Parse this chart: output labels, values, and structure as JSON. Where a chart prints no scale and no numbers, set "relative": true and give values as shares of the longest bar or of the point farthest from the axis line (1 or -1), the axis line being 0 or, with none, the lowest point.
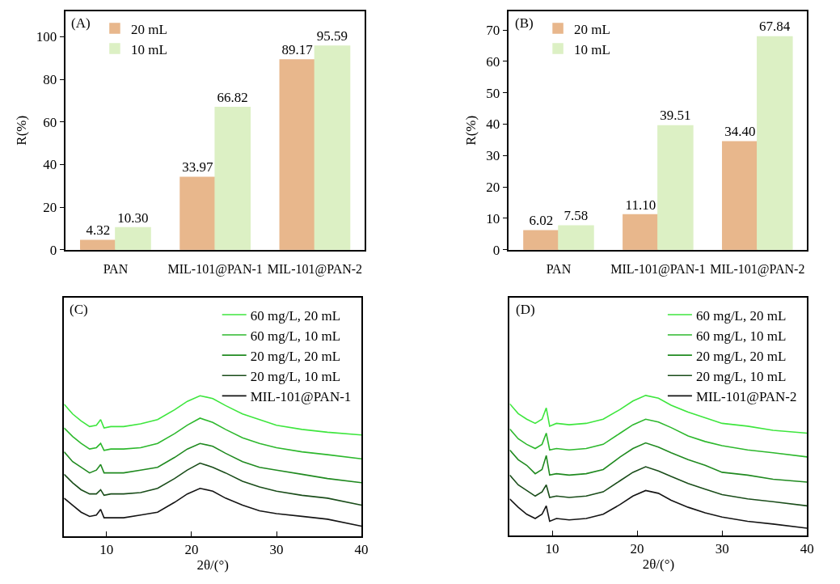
{
  "chart_data": [
    {
      "type": "bar",
      "categories": [
        "PAN",
        "MIL-101@PAN-1",
        "MIL-101@PAN-2"
      ],
      "ylabel": "R(%)",
      "ylim": [
        0,
        112
      ],
      "yticks": [
        0,
        20,
        40,
        60,
        80,
        100
      ],
      "legend": "top left",
      "annotations": [
        "(A)"
      ],
      "series": [
        {
          "name": "20 mL",
          "color": "#e8b78c",
          "values": [
            4.32,
            33.97,
            89.17
          ],
          "value_labels": [
            "4.32",
            "33.97",
            "89.17"
          ]
        },
        {
          "name": "10 mL",
          "color": "#dcf0c4",
          "values": [
            10.3,
            66.82,
            95.59
          ],
          "value_labels": [
            "10.30",
            "66.82",
            "95.59"
          ]
        }
      ]
    },
    {
      "type": "bar",
      "categories": [
        "PAN",
        "MIL-101@PAN-1",
        "MIL-101@PAN-2"
      ],
      "ylabel": "R(%)",
      "ylim": [
        0,
        76
      ],
      "yticks": [
        0,
        10,
        20,
        30,
        40,
        50,
        60,
        70
      ],
      "legend": "top left",
      "annotations": [
        "(B)"
      ],
      "series": [
        {
          "name": "20 mL",
          "color": "#e8b78c",
          "values": [
            6.02,
            11.1,
            34.4
          ],
          "value_labels": [
            "6.02",
            "11.10",
            "34.40"
          ]
        },
        {
          "name": "10 mL",
          "color": "#dcf0c4",
          "values": [
            7.58,
            39.51,
            67.84
          ],
          "value_labels": [
            "7.58",
            "39.51",
            "67.84"
          ]
        }
      ]
    },
    {
      "type": "line",
      "relative": true,
      "xlabel": "2θ/(°)",
      "xlim": [
        5,
        40
      ],
      "xticks": [
        10,
        20,
        30,
        40
      ],
      "tick_labels": "x",
      "legend": "top right",
      "marker": "none",
      "line_style": "solid",
      "annotations": [
        "(C)"
      ],
      "x": [
        5,
        6,
        7,
        8,
        8.8,
        9.3,
        9.7,
        10.5,
        12,
        14,
        16,
        18,
        19.5,
        21,
        22.5,
        24,
        26,
        28,
        30,
        33,
        36,
        40
      ],
      "series": [
        {
          "name": "60 mg/L, 20 mL",
          "color": "#3ee63e",
          "values": [
            0.94,
            0.87,
            0.82,
            0.78,
            0.79,
            0.83,
            0.77,
            0.78,
            0.78,
            0.8,
            0.83,
            0.9,
            0.96,
            1,
            0.98,
            0.93,
            0.87,
            0.83,
            0.79,
            0.76,
            0.74,
            0.72
          ]
        },
        {
          "name": "60 mg/L, 10 mL",
          "color": "#2db82d",
          "values": [
            0.77,
            0.71,
            0.66,
            0.62,
            0.63,
            0.66,
            0.61,
            0.62,
            0.62,
            0.63,
            0.66,
            0.73,
            0.79,
            0.84,
            0.81,
            0.76,
            0.7,
            0.66,
            0.63,
            0.6,
            0.58,
            0.55
          ]
        },
        {
          "name": "20 mg/L, 20 mL",
          "color": "#208a20",
          "values": [
            0.6,
            0.53,
            0.49,
            0.45,
            0.47,
            0.51,
            0.45,
            0.45,
            0.45,
            0.47,
            0.49,
            0.56,
            0.62,
            0.66,
            0.64,
            0.59,
            0.53,
            0.49,
            0.47,
            0.44,
            0.41,
            0.38
          ]
        },
        {
          "name": "20 mg/L, 10 mL",
          "color": "#1a4d1a",
          "values": [
            0.44,
            0.38,
            0.33,
            0.3,
            0.3,
            0.33,
            0.29,
            0.3,
            0.3,
            0.31,
            0.34,
            0.41,
            0.47,
            0.52,
            0.49,
            0.45,
            0.39,
            0.35,
            0.32,
            0.29,
            0.27,
            0.22
          ]
        },
        {
          "name": "MIL-101@PAN-1",
          "color": "#141414",
          "values": [
            0.27,
            0.22,
            0.17,
            0.14,
            0.15,
            0.19,
            0.13,
            0.13,
            0.13,
            0.15,
            0.17,
            0.24,
            0.3,
            0.34,
            0.32,
            0.27,
            0.22,
            0.18,
            0.16,
            0.14,
            0.12,
            0.07
          ]
        }
      ]
    },
    {
      "type": "line",
      "relative": true,
      "xlabel": "2θ/(°)",
      "xlim": [
        5,
        40
      ],
      "xticks": [
        10,
        20,
        30,
        40
      ],
      "tick_labels": "x",
      "legend": "top right",
      "marker": "none",
      "line_style": "solid",
      "annotations": [
        "(D)"
      ],
      "x": [
        5,
        6,
        7,
        8,
        8.8,
        9.3,
        9.7,
        10.5,
        12,
        14,
        16,
        18,
        19.5,
        21,
        22.5,
        24,
        26,
        28,
        30,
        33,
        36,
        40
      ],
      "series": [
        {
          "name": "60 mg/L, 20 mL",
          "color": "#3ee63e",
          "values": [
            0.94,
            0.87,
            0.83,
            0.8,
            0.83,
            0.91,
            0.78,
            0.8,
            0.79,
            0.8,
            0.83,
            0.9,
            0.96,
            1,
            0.98,
            0.93,
            0.88,
            0.84,
            0.8,
            0.78,
            0.75,
            0.73
          ]
        },
        {
          "name": "60 mg/L, 10 mL",
          "color": "#2db82d",
          "values": [
            0.76,
            0.69,
            0.65,
            0.62,
            0.65,
            0.73,
            0.61,
            0.62,
            0.61,
            0.62,
            0.65,
            0.73,
            0.79,
            0.83,
            0.81,
            0.77,
            0.71,
            0.67,
            0.64,
            0.61,
            0.59,
            0.56
          ]
        },
        {
          "name": "20 mg/L, 20 mL",
          "color": "#208a20",
          "values": [
            0.61,
            0.54,
            0.5,
            0.44,
            0.47,
            0.57,
            0.43,
            0.44,
            0.43,
            0.44,
            0.47,
            0.56,
            0.62,
            0.66,
            0.63,
            0.59,
            0.54,
            0.5,
            0.45,
            0.43,
            0.4,
            0.38
          ]
        },
        {
          "name": "20 mg/L, 10 mL",
          "color": "#1a4d1a",
          "values": [
            0.43,
            0.36,
            0.32,
            0.28,
            0.31,
            0.36,
            0.27,
            0.28,
            0.27,
            0.28,
            0.31,
            0.39,
            0.45,
            0.49,
            0.46,
            0.42,
            0.37,
            0.33,
            0.29,
            0.26,
            0.24,
            0.21
          ]
        },
        {
          "name": "MIL-101@PAN-2",
          "color": "#141414",
          "values": [
            0.26,
            0.2,
            0.15,
            0.12,
            0.15,
            0.21,
            0.1,
            0.12,
            0.11,
            0.12,
            0.15,
            0.22,
            0.28,
            0.32,
            0.3,
            0.25,
            0.2,
            0.16,
            0.13,
            0.1,
            0.08,
            0.05
          ]
        }
      ]
    }
  ]
}
